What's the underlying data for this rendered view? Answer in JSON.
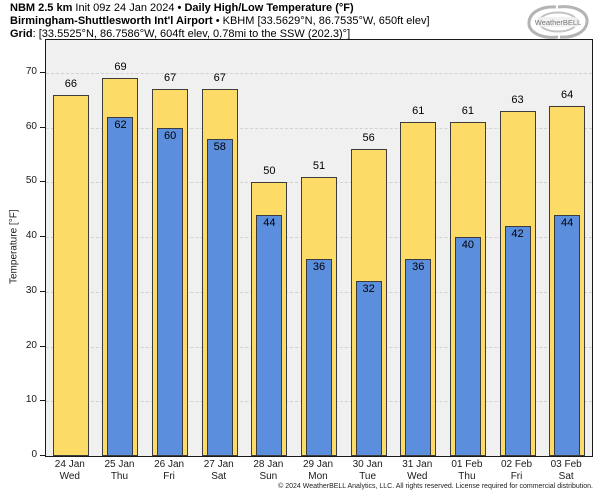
{
  "header": {
    "model": "NBM 2.5 km",
    "init": " Init 09z 24 Jan 2024 ",
    "title": "• Daily High/Low Temperature (°F)",
    "station": "Birmingham-Shuttlesworth Int'l Airport",
    "station_info": " • KBHM [33.5629°N, 86.7535°W, 650ft elev]",
    "grid_label": "Grid",
    "grid_info": ": [33.5525°N, 86.7586°W, 604ft elev, 0.78mi to the SSW (202.3)°]"
  },
  "logo": {
    "text": "WeatherBELL"
  },
  "footer": {
    "copyright": "© 2024 WeatherBELL Analytics, LLC. All rights reserved. License required for commercial distribution."
  },
  "colors": {
    "high_bar": "#fcdb66",
    "low_bar": "#5c8ede",
    "bar_border": "#3c3c3c",
    "plot_bg": "#f0f0f0",
    "grid": "#d2d2d2",
    "frame": "#1a1a1a"
  },
  "chart_data": {
    "type": "bar",
    "title": "Daily High/Low Temperature (°F)",
    "subtitle": "NBM 2.5 km Init 09z 24 Jan 2024 — Birmingham-Shuttlesworth Int'l Airport (KBHM)",
    "xlabel": "",
    "ylabel": "Temperature [°F]",
    "ylim": [
      0,
      76
    ],
    "yticks": [
      0,
      10,
      20,
      30,
      40,
      50,
      60,
      70
    ],
    "grid": "horizontal-dashed",
    "legend_position": "none",
    "categories": [
      {
        "date": "24 Jan",
        "day": "Wed"
      },
      {
        "date": "25 Jan",
        "day": "Thu"
      },
      {
        "date": "26 Jan",
        "day": "Fri"
      },
      {
        "date": "27 Jan",
        "day": "Sat"
      },
      {
        "date": "28 Jan",
        "day": "Sun"
      },
      {
        "date": "29 Jan",
        "day": "Mon"
      },
      {
        "date": "30 Jan",
        "day": "Tue"
      },
      {
        "date": "31 Jan",
        "day": "Wed"
      },
      {
        "date": "01 Feb",
        "day": "Thu"
      },
      {
        "date": "02 Feb",
        "day": "Fri"
      },
      {
        "date": "03 Feb",
        "day": "Sat"
      }
    ],
    "series": [
      {
        "name": "Daily High",
        "color": "#fcdb66",
        "values": [
          66,
          69,
          67,
          67,
          50,
          51,
          56,
          61,
          61,
          63,
          64
        ]
      },
      {
        "name": "Daily Low",
        "color": "#5c8ede",
        "values": [
          null,
          62,
          60,
          58,
          44,
          36,
          32,
          36,
          40,
          42,
          44
        ]
      }
    ]
  }
}
